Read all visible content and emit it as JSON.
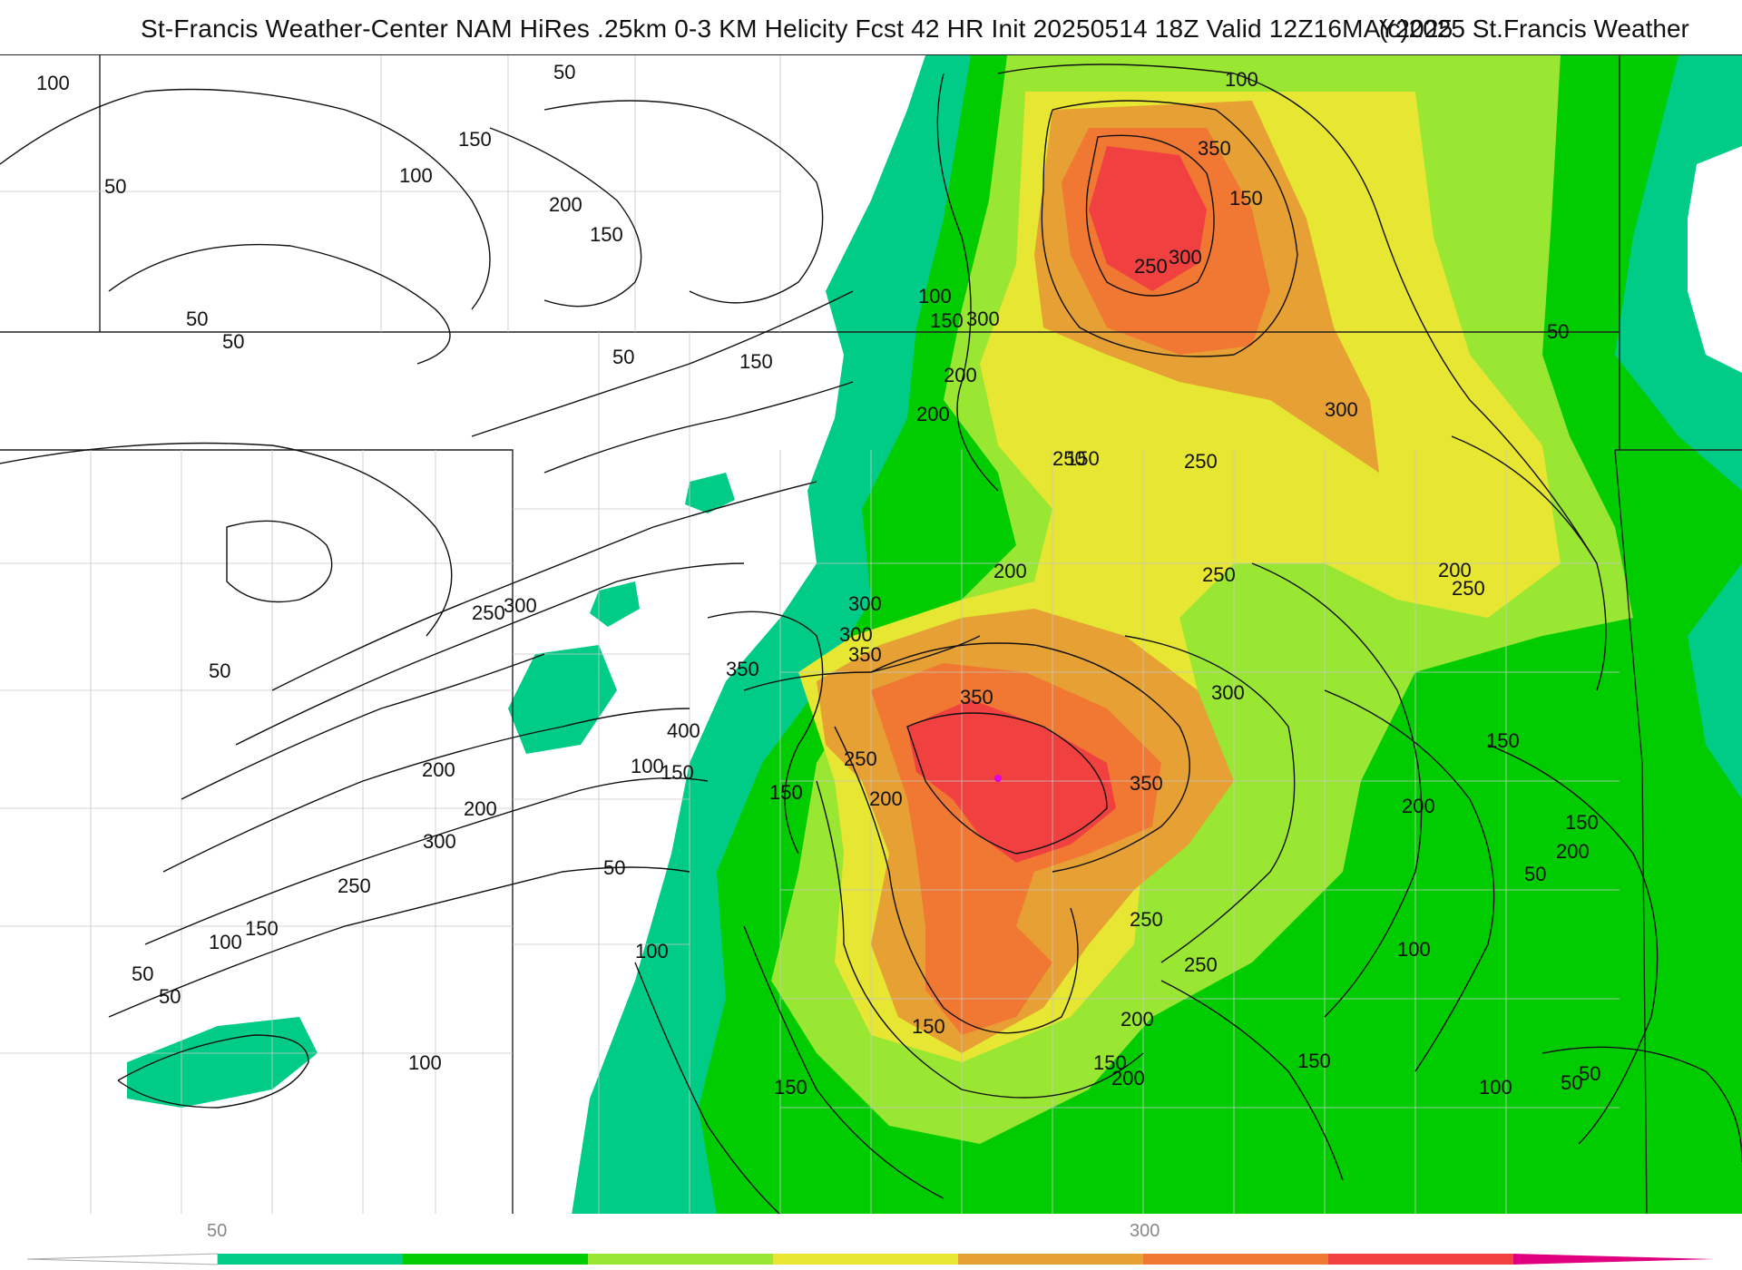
{
  "header": {
    "title": "St-Francis Weather-Center NAM HiRes .25km 0-3 KM Helicity Fcst 42 HR Init 20250514 18Z  Valid 12Z16MAY2025",
    "copyright": "(c)2025 St.Francis Weather"
  },
  "map": {
    "contour_labels": [
      "100",
      "50",
      "200",
      "150",
      "100",
      "50",
      "200",
      "150",
      "100",
      "50",
      "150",
      "200",
      "300",
      "350",
      "350",
      "300",
      "250",
      "200",
      "150",
      "100",
      "50",
      "50",
      "50",
      "150",
      "150",
      "100",
      "50",
      "250",
      "300",
      "350",
      "400",
      "300",
      "250",
      "200",
      "100",
      "150",
      "50",
      "250",
      "300",
      "350",
      "250",
      "200",
      "150",
      "200",
      "250",
      "300",
      "250",
      "200",
      "150",
      "100",
      "50",
      "150",
      "150",
      "100",
      "50",
      "50",
      "150",
      "200",
      "300",
      "250",
      "200",
      "150",
      "50",
      "50",
      "100",
      "200",
      "150",
      "200",
      "250",
      "150",
      "200",
      "350",
      "300",
      "250",
      "50",
      "100"
    ]
  },
  "colorbar": {
    "tick_labels": [
      "50",
      "300"
    ],
    "colors": [
      "#00cc88",
      "#00cc00",
      "#99e633",
      "#e6e633",
      "#e6a033",
      "#f07833",
      "#f04040",
      "#e00080"
    ]
  }
}
